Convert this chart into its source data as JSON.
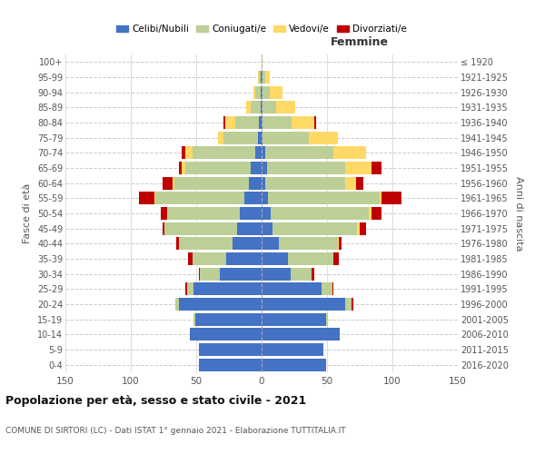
{
  "age_groups": [
    "0-4",
    "5-9",
    "10-14",
    "15-19",
    "20-24",
    "25-29",
    "30-34",
    "35-39",
    "40-44",
    "45-49",
    "50-54",
    "55-59",
    "60-64",
    "65-69",
    "70-74",
    "75-79",
    "80-84",
    "85-89",
    "90-94",
    "95-99",
    "100+"
  ],
  "birth_years": [
    "2016-2020",
    "2011-2015",
    "2006-2010",
    "2001-2005",
    "1996-2000",
    "1991-1995",
    "1986-1990",
    "1981-1985",
    "1976-1980",
    "1971-1975",
    "1966-1970",
    "1961-1965",
    "1956-1960",
    "1951-1955",
    "1946-1950",
    "1941-1945",
    "1936-1940",
    "1931-1935",
    "1926-1930",
    "1921-1925",
    "≤ 1920"
  ],
  "males": {
    "celibe": [
      48,
      48,
      55,
      51,
      63,
      52,
      32,
      27,
      22,
      19,
      17,
      13,
      10,
      8,
      5,
      3,
      2,
      1,
      1,
      1,
      0
    ],
    "coniugato": [
      0,
      0,
      0,
      1,
      3,
      5,
      15,
      26,
      41,
      55,
      55,
      68,
      57,
      50,
      48,
      26,
      18,
      7,
      4,
      1,
      0
    ],
    "vedovo": [
      0,
      0,
      0,
      0,
      0,
      0,
      0,
      0,
      0,
      0,
      0,
      1,
      1,
      3,
      5,
      4,
      8,
      4,
      1,
      1,
      0
    ],
    "divorziato": [
      0,
      0,
      0,
      0,
      0,
      1,
      1,
      3,
      2,
      2,
      5,
      12,
      8,
      2,
      3,
      0,
      1,
      0,
      0,
      0,
      0
    ]
  },
  "females": {
    "nubile": [
      49,
      47,
      60,
      49,
      64,
      46,
      22,
      20,
      13,
      8,
      7,
      5,
      3,
      4,
      3,
      1,
      1,
      1,
      1,
      1,
      0
    ],
    "coniugata": [
      0,
      0,
      0,
      2,
      5,
      8,
      16,
      35,
      45,
      65,
      75,
      85,
      61,
      60,
      52,
      35,
      22,
      10,
      5,
      2,
      0
    ],
    "vedova": [
      0,
      0,
      0,
      0,
      0,
      0,
      0,
      0,
      1,
      2,
      2,
      2,
      8,
      20,
      25,
      22,
      17,
      15,
      10,
      3,
      1
    ],
    "divorziata": [
      0,
      0,
      0,
      0,
      1,
      1,
      2,
      4,
      2,
      5,
      8,
      15,
      6,
      8,
      0,
      0,
      2,
      0,
      0,
      0,
      0
    ]
  },
  "colors": {
    "celibe": "#4472C4",
    "coniugato": "#BCCF96",
    "vedovo": "#FFD966",
    "divorziato": "#C00000"
  },
  "xlim": 150,
  "title": "Popolazione per età, sesso e stato civile - 2021",
  "subtitle": "COMUNE DI SIRTORI (LC) - Dati ISTAT 1° gennaio 2021 - Elaborazione TUTTITALIA.IT",
  "ylabel_left": "Fasce di età",
  "ylabel_right": "Anni di nascita",
  "xlabel_females": "Femmine",
  "legend_labels": [
    "Celibi/Nubili",
    "Coniugati/e",
    "Vedovi/e",
    "Divorziati/e"
  ]
}
